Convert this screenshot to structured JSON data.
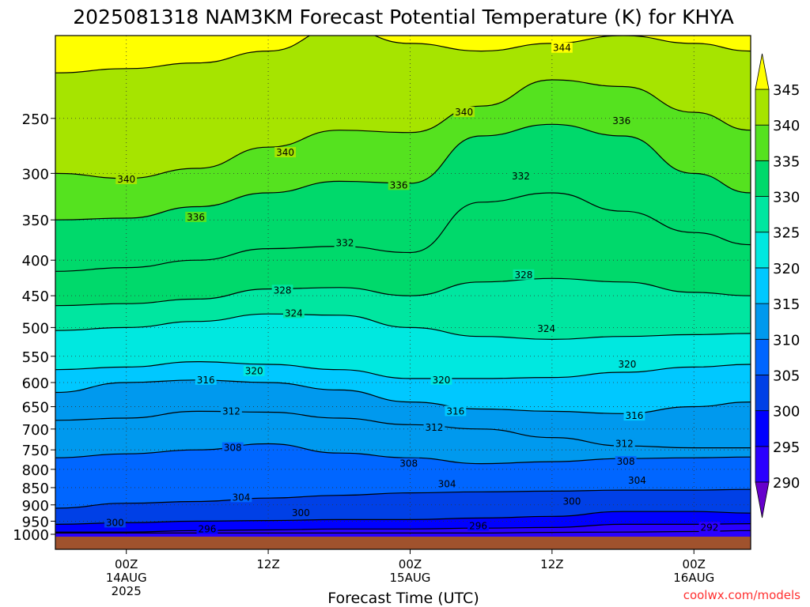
{
  "chart_data": {
    "type": "contour",
    "title": "2025081318 NAM3KM Forecast Potential Temperature (K) for KHYA",
    "xlabel": "Forecast Time (UTC)",
    "ylabel": "",
    "y_axis": {
      "scale": "log",
      "inverted": true,
      "ylim": [
        190,
        1000
      ],
      "ticks": [
        250,
        300,
        350,
        400,
        450,
        500,
        550,
        600,
        650,
        700,
        750,
        800,
        850,
        900,
        950,
        1000
      ]
    },
    "x_axis": {
      "xlim_hours": [
        -5,
        44
      ],
      "ticks": [
        {
          "hour": 0,
          "lines": [
            "00Z",
            "14AUG",
            "2025"
          ]
        },
        {
          "hour": 10,
          "lines": [
            "12Z"
          ]
        },
        {
          "hour": 20,
          "lines": [
            "00Z",
            "15AUG"
          ]
        },
        {
          "hour": 30,
          "lines": [
            "12Z"
          ]
        },
        {
          "hour": 40,
          "lines": [
            "00Z",
            "16AUG"
          ]
        }
      ]
    },
    "grid": true,
    "colorbar": {
      "levels": [
        290,
        295,
        300,
        305,
        310,
        315,
        320,
        325,
        330,
        335,
        340,
        345
      ],
      "colors": [
        "#6600cc",
        "#2a00ff",
        "#0000ff",
        "#0040e6",
        "#0066ff",
        "#0099ee",
        "#00c8ff",
        "#00e8e0",
        "#00e6a0",
        "#00d96b",
        "#55e21f",
        "#a6e400",
        "#ffff00"
      ]
    },
    "contour_interval": 4,
    "series": [
      {
        "theta": 292,
        "p": [
          988,
          988,
          988,
          988,
          988,
          988,
          988,
          986,
          985,
          983,
          980
        ]
      },
      {
        "theta": 296,
        "p": [
          985,
          985,
          980,
          978,
          975,
          975,
          972,
          970,
          960,
          960,
          958
        ]
      },
      {
        "theta": 300,
        "p": [
          960,
          955,
          950,
          948,
          945,
          945,
          940,
          935,
          920,
          920,
          925
        ]
      },
      {
        "theta": 304,
        "p": [
          910,
          895,
          890,
          880,
          872,
          865,
          862,
          860,
          857,
          857,
          855
        ]
      },
      {
        "theta": 308,
        "p": [
          770,
          760,
          750,
          735,
          758,
          770,
          785,
          780,
          772,
          770,
          768
        ]
      },
      {
        "theta": 312,
        "p": [
          680,
          675,
          660,
          662,
          675,
          690,
          700,
          720,
          740,
          745,
          745
        ]
      },
      {
        "theta": 316,
        "p": [
          620,
          600,
          595,
          600,
          615,
          640,
          655,
          660,
          665,
          650,
          640
        ]
      },
      {
        "theta": 320,
        "p": [
          575,
          570,
          560,
          565,
          575,
          592,
          592,
          590,
          580,
          570,
          565
        ]
      },
      {
        "theta": 324,
        "p": [
          505,
          500,
          490,
          478,
          480,
          500,
          515,
          520,
          515,
          512,
          510
        ]
      },
      {
        "theta": 328,
        "p": [
          465,
          462,
          455,
          440,
          438,
          450,
          430,
          425,
          430,
          445,
          450
        ]
      },
      {
        "theta": 332,
        "p": [
          415,
          410,
          400,
          385,
          382,
          390,
          330,
          320,
          340,
          365,
          380
        ]
      },
      {
        "theta": 336,
        "p": [
          350,
          348,
          335,
          320,
          308,
          310,
          265,
          255,
          265,
          300,
          320
        ]
      },
      {
        "theta": 340,
        "p": [
          300,
          305,
          295,
          275,
          260,
          262,
          240,
          220,
          225,
          245,
          260
        ]
      },
      {
        "theta": 344,
        "p": [
          215,
          212,
          208,
          200,
          185,
          195,
          200,
          195,
          190,
          195,
          200
        ]
      }
    ],
    "series_x_hours": [
      -5,
      0,
      5,
      10,
      15,
      20,
      25,
      30,
      35,
      40,
      44
    ],
    "contour_labels": [
      {
        "text": "344",
        "hour": 30.7,
        "p": 198
      },
      {
        "text": "340",
        "hour": 23.8,
        "p": 245
      },
      {
        "text": "336",
        "hour": 34.9,
        "p": 252
      },
      {
        "text": "340",
        "hour": 11.2,
        "p": 280
      },
      {
        "text": "340",
        "hour": 0.0,
        "p": 306
      },
      {
        "text": "336",
        "hour": 19.2,
        "p": 312
      },
      {
        "text": "332",
        "hour": 27.8,
        "p": 303
      },
      {
        "text": "336",
        "hour": 4.9,
        "p": 347
      },
      {
        "text": "332",
        "hour": 15.4,
        "p": 378
      },
      {
        "text": "328",
        "hour": 11.0,
        "p": 442
      },
      {
        "text": "328",
        "hour": 28.0,
        "p": 420
      },
      {
        "text": "324",
        "hour": 11.8,
        "p": 477
      },
      {
        "text": "324",
        "hour": 29.6,
        "p": 502
      },
      {
        "text": "320",
        "hour": 9.0,
        "p": 578
      },
      {
        "text": "320",
        "hour": 22.2,
        "p": 595
      },
      {
        "text": "320",
        "hour": 35.3,
        "p": 565
      },
      {
        "text": "316",
        "hour": 5.6,
        "p": 595
      },
      {
        "text": "316",
        "hour": 23.2,
        "p": 660
      },
      {
        "text": "316",
        "hour": 35.8,
        "p": 670
      },
      {
        "text": "312",
        "hour": 7.4,
        "p": 660
      },
      {
        "text": "312",
        "hour": 21.7,
        "p": 697
      },
      {
        "text": "312",
        "hour": 35.1,
        "p": 735
      },
      {
        "text": "308",
        "hour": 7.5,
        "p": 745
      },
      {
        "text": "308",
        "hour": 19.9,
        "p": 785
      },
      {
        "text": "308",
        "hour": 35.2,
        "p": 780
      },
      {
        "text": "304",
        "hour": 8.1,
        "p": 878
      },
      {
        "text": "304",
        "hour": 22.6,
        "p": 840
      },
      {
        "text": "304",
        "hour": 36.0,
        "p": 830
      },
      {
        "text": "300",
        "hour": -0.8,
        "p": 955
      },
      {
        "text": "300",
        "hour": 12.3,
        "p": 925
      },
      {
        "text": "300",
        "hour": 31.4,
        "p": 890
      },
      {
        "text": "296",
        "hour": 5.7,
        "p": 975
      },
      {
        "text": "296",
        "hour": 24.8,
        "p": 965
      },
      {
        "text": "292",
        "hour": 41.1,
        "p": 970
      }
    ]
  },
  "footer": {
    "credit": "coolwx.com/models"
  },
  "colors": {
    "terrain": "#a0522d",
    "credit": "#ff3030"
  }
}
